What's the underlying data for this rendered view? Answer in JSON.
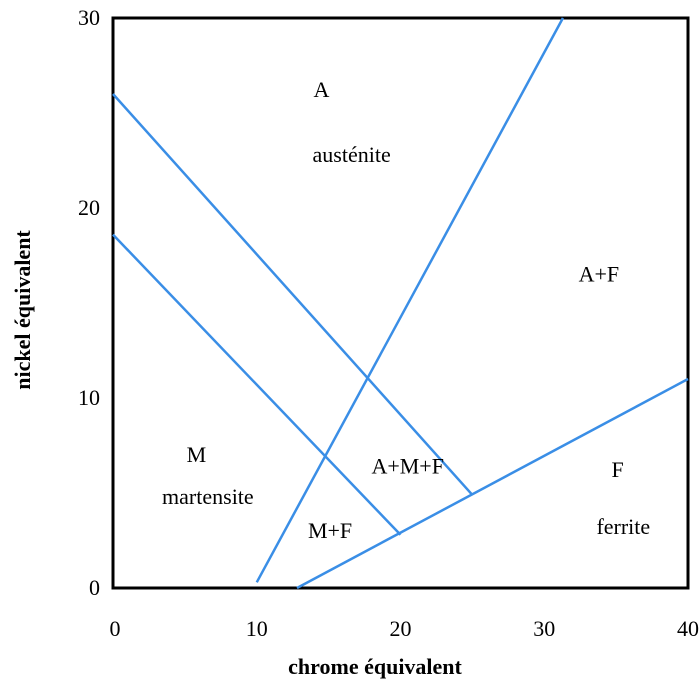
{
  "chart_data": {
    "type": "line",
    "title": "",
    "xlabel": "chrome équivalent",
    "ylabel": "nickel équivalent",
    "xlim": [
      0,
      40
    ],
    "ylim": [
      0,
      30
    ],
    "x_ticks": [
      "0",
      "10",
      "20",
      "30",
      "40"
    ],
    "y_ticks": [
      "0",
      "10",
      "20",
      "30"
    ],
    "grid": false,
    "line_color": "#3a8ee6",
    "series": [
      {
        "points": [
          [
            10,
            0.3
          ],
          [
            31.3,
            30
          ]
        ]
      },
      {
        "points": [
          [
            0,
            26
          ],
          [
            25,
            4.9
          ]
        ]
      },
      {
        "points": [
          [
            0,
            18.6
          ],
          [
            20,
            2.8
          ]
        ]
      },
      {
        "points": [
          [
            12.8,
            0
          ],
          [
            40,
            11
          ]
        ]
      }
    ],
    "regions": [
      {
        "label": "A",
        "x": 14.5,
        "y": 26.2
      },
      {
        "label": "austénite",
        "x": 16.6,
        "y": 22.8
      },
      {
        "label": "A+F",
        "x": 33.8,
        "y": 16.5
      },
      {
        "label": "M",
        "x": 5.8,
        "y": 7.0
      },
      {
        "label": "martensite",
        "x": 6.6,
        "y": 4.8
      },
      {
        "label": "A+M+F",
        "x": 20.5,
        "y": 6.4
      },
      {
        "label": "M+F",
        "x": 15.1,
        "y": 3.0
      },
      {
        "label": "F",
        "x": 35.1,
        "y": 6.2
      },
      {
        "label": "ferrite",
        "x": 35.5,
        "y": 3.2
      }
    ]
  }
}
